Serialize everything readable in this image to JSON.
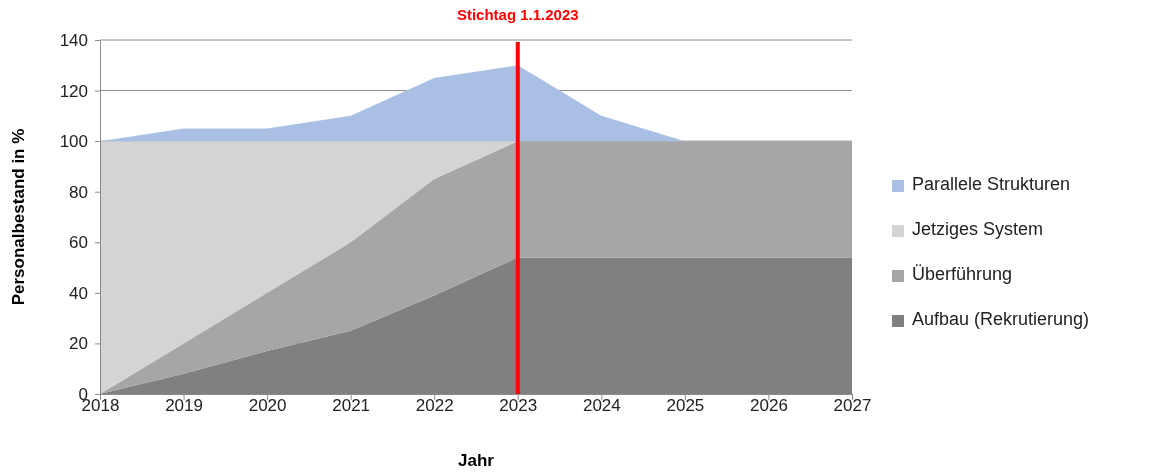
{
  "chart_data": {
    "type": "area",
    "stacked": true,
    "xlabel": "Jahr",
    "ylabel": "Personalbestand in %",
    "x": [
      2018,
      2019,
      2020,
      2021,
      2022,
      2023,
      2024,
      2025,
      2026,
      2027
    ],
    "xlim": [
      2018,
      2027
    ],
    "xticks": [
      2018,
      2019,
      2020,
      2021,
      2022,
      2023,
      2024,
      2025,
      2026,
      2027
    ],
    "ylim": [
      0,
      140
    ],
    "yticks": [
      0,
      20,
      40,
      60,
      80,
      100,
      120,
      140
    ],
    "grid": "y",
    "legend": "right",
    "series": [
      {
        "name": "Aufbau (Rekrutierung)",
        "color": "#808080",
        "values": [
          0,
          8,
          17,
          25,
          39,
          54,
          54,
          54,
          54,
          54
        ]
      },
      {
        "name": "Überführung",
        "color": "#a6a6a6",
        "values": [
          0,
          12,
          23,
          35,
          46,
          46,
          46,
          46,
          46,
          46
        ]
      },
      {
        "name": "Jetziges System",
        "color": "#d4d4d4",
        "values": [
          100,
          80,
          60,
          40,
          15,
          0,
          null,
          null,
          null,
          null
        ]
      },
      {
        "name": "Parallele Strukturen",
        "color": "#a9c0e4",
        "values": [
          0,
          5,
          5,
          10,
          25,
          30,
          10,
          0,
          0,
          0
        ]
      }
    ],
    "ref_lines": [
      {
        "axis": "x",
        "value": 2023,
        "label": "Stichtag 1.1.2023",
        "color": "#ff0000"
      }
    ]
  }
}
